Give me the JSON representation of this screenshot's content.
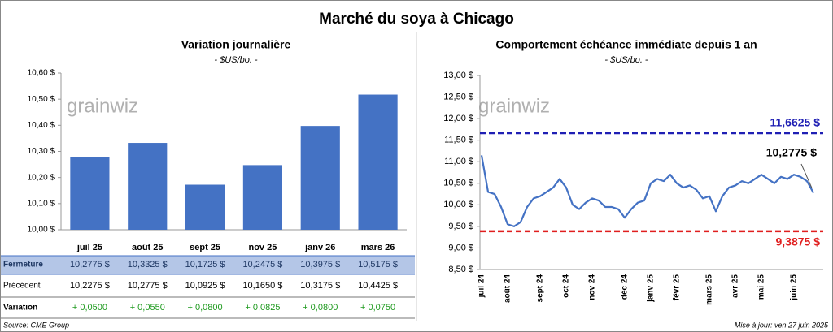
{
  "title": "Marché du soya à Chicago",
  "watermark": "grainwiz",
  "chart_data": [
    {
      "type": "bar",
      "title": "Variation journalière",
      "subtitle": "- $US/bo. -",
      "categories": [
        "juil 25",
        "août 25",
        "sept 25",
        "nov 25",
        "janv 26",
        "mars 26"
      ],
      "values": [
        10.2775,
        10.3325,
        10.1725,
        10.2475,
        10.3975,
        10.5175
      ],
      "color": "#4472c4",
      "ylim": [
        10.0,
        10.6
      ],
      "yticks": [
        {
          "value": 10.0,
          "label": "10,00 $"
        },
        {
          "value": 10.1,
          "label": "10,10 $"
        },
        {
          "value": 10.2,
          "label": "10,20 $"
        },
        {
          "value": 10.3,
          "label": "10,30 $"
        },
        {
          "value": 10.4,
          "label": "10,40 $"
        },
        {
          "value": 10.5,
          "label": "10,50 $"
        },
        {
          "value": 10.6,
          "label": "10,60 $"
        }
      ]
    },
    {
      "type": "line",
      "title": "Comportement échéance immédiate depuis 1 an",
      "subtitle": "- $US/bo. -",
      "categories": [
        "juil 24",
        null,
        null,
        null,
        "août 24",
        null,
        null,
        null,
        null,
        "sept 24",
        null,
        null,
        null,
        "oct 24",
        null,
        null,
        null,
        "nov 24",
        null,
        null,
        null,
        null,
        "déc 24",
        null,
        null,
        null,
        "janv 25",
        null,
        null,
        null,
        "févr 25",
        null,
        null,
        null,
        null,
        "mars 25",
        null,
        null,
        null,
        "avr 25",
        null,
        null,
        null,
        "mai 25",
        null,
        null,
        null,
        null,
        "juin 25",
        null,
        null,
        null
      ],
      "values": [
        11.15,
        10.3,
        10.25,
        9.95,
        9.55,
        9.5,
        9.6,
        9.95,
        10.15,
        10.2,
        10.3,
        10.4,
        10.6,
        10.4,
        10.0,
        9.9,
        10.05,
        10.15,
        10.1,
        9.95,
        9.95,
        9.9,
        9.7,
        9.9,
        10.05,
        10.1,
        10.5,
        10.6,
        10.55,
        10.7,
        10.5,
        10.4,
        10.45,
        10.35,
        10.15,
        10.2,
        9.85,
        10.2,
        10.4,
        10.45,
        10.55,
        10.5,
        10.6,
        10.7,
        10.6,
        10.5,
        10.65,
        10.6,
        10.7,
        10.65,
        10.55,
        10.2775
      ],
      "color": "#4472c4",
      "ylim": [
        8.5,
        13.0
      ],
      "yticks": [
        {
          "value": 8.5,
          "label": "8,50 $"
        },
        {
          "value": 9.0,
          "label": "9,00 $"
        },
        {
          "value": 9.5,
          "label": "9,50 $"
        },
        {
          "value": 10.0,
          "label": "10,00 $"
        },
        {
          "value": 10.5,
          "label": "10,50 $"
        },
        {
          "value": 11.0,
          "label": "11,00 $"
        },
        {
          "value": 11.5,
          "label": "11,50 $"
        },
        {
          "value": 12.0,
          "label": "12,00 $"
        },
        {
          "value": 12.5,
          "label": "12,50 $"
        },
        {
          "value": 13.0,
          "label": "13,00 $"
        }
      ],
      "reference_lines": [
        {
          "value": 11.6625,
          "label": "11,6625 $",
          "color": "#1f1fb4"
        },
        {
          "value": 9.3875,
          "label": "9,3875 $",
          "color": "#e01f1f"
        }
      ],
      "annotation": {
        "value": 10.2775,
        "label": "10,2775 $"
      }
    }
  ],
  "table": {
    "rows": [
      {
        "label": "Fermeture",
        "cells": [
          "10,2775 $",
          "10,3325 $",
          "10,1725 $",
          "10,2475 $",
          "10,3975 $",
          "10,5175 $"
        ]
      },
      {
        "label": "Précédent",
        "cells": [
          "10,2275 $",
          "10,2775 $",
          "10,0925 $",
          "10,1650 $",
          "10,3175 $",
          "10,4425 $"
        ]
      },
      {
        "label": "Variation",
        "cells": [
          "+ 0,0500",
          "+ 0,0550",
          "+ 0,0800",
          "+ 0,0825",
          "+ 0,0800",
          "+ 0,0750"
        ]
      }
    ]
  },
  "footer": {
    "source": "Source: CME Group",
    "updated": "Mise à jour: ven 27 juin 2025"
  }
}
